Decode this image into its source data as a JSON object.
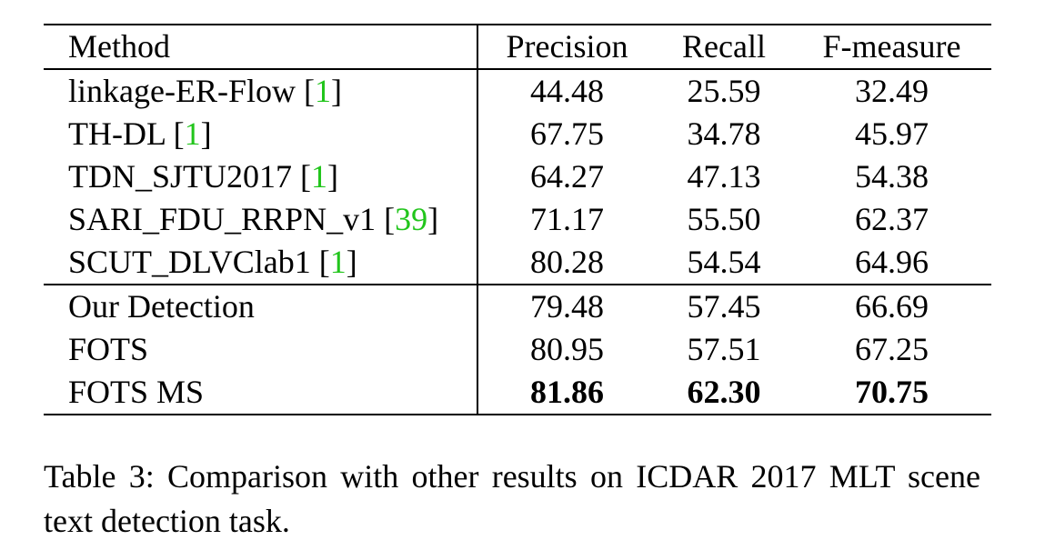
{
  "table": {
    "headers": {
      "method": "Method",
      "precision": "Precision",
      "recall": "Recall",
      "fmeasure": "F-measure"
    },
    "group1": [
      {
        "method": "linkage-ER-Flow",
        "cite": "1",
        "precision": "44.48",
        "recall": "25.59",
        "fmeasure": "32.49"
      },
      {
        "method": "TH-DL",
        "cite": "1",
        "precision": "67.75",
        "recall": "34.78",
        "fmeasure": "45.97"
      },
      {
        "method": "TDN_SJTU2017",
        "cite": "1",
        "precision": "64.27",
        "recall": "47.13",
        "fmeasure": "54.38"
      },
      {
        "method": "SARI_FDU_RRPN_v1",
        "cite": "39",
        "precision": "71.17",
        "recall": "55.50",
        "fmeasure": "62.37"
      },
      {
        "method": "SCUT_DLVClab1",
        "cite": "1",
        "precision": "80.28",
        "recall": "54.54",
        "fmeasure": "64.96"
      }
    ],
    "group2": [
      {
        "method": "Our Detection",
        "precision": "79.48",
        "recall": "57.45",
        "fmeasure": "66.69"
      },
      {
        "method": "FOTS",
        "precision": "80.95",
        "recall": "57.51",
        "fmeasure": "67.25"
      },
      {
        "method": "FOTS MS",
        "precision": "81.86",
        "recall": "62.30",
        "fmeasure": "70.75"
      }
    ]
  },
  "caption": "Table 3: Comparison with other results on ICDAR 2017 MLT scene text detection task.",
  "colors": {
    "citation": "#22c51c",
    "text": "#000000"
  }
}
